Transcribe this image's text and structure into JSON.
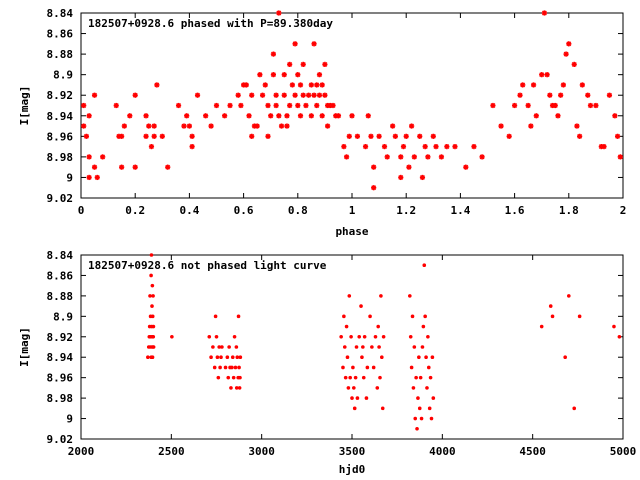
{
  "colors": {
    "points": "#ff0000",
    "frame": "#000000",
    "background": "#ffffff"
  },
  "chart_data": [
    {
      "type": "scatter",
      "title": "182507+0928.6 phased with P=89.380day",
      "xlabel": "phase",
      "ylabel": "I[mag]",
      "xlim": [
        0,
        2
      ],
      "ylim": [
        9.02,
        8.84
      ],
      "y_inverted": true,
      "grid": false,
      "x_ticks": [
        0,
        0.2,
        0.4,
        0.6,
        0.8,
        1,
        1.2,
        1.4,
        1.6,
        1.8,
        2
      ],
      "x_tick_labels": [
        "0",
        "0.2",
        "0.4",
        "0.6",
        "0.8",
        "1",
        "1.2",
        "1.4",
        "1.6",
        "1.8",
        "2"
      ],
      "y_ticks": [
        8.84,
        8.86,
        8.88,
        8.9,
        8.92,
        8.94,
        8.96,
        8.98,
        9.0,
        9.02
      ],
      "y_tick_labels": [
        "8.84",
        "8.86",
        "8.88",
        "8.9",
        "8.92",
        "8.94",
        "8.96",
        "8.98",
        "9",
        "9.02"
      ],
      "marker": "star",
      "points": [
        [
          0.01,
          8.93
        ],
        [
          0.01,
          8.95
        ],
        [
          0.02,
          8.96
        ],
        [
          0.03,
          8.94
        ],
        [
          0.03,
          8.98
        ],
        [
          0.03,
          9.0
        ],
        [
          0.05,
          8.92
        ],
        [
          0.05,
          8.99
        ],
        [
          0.06,
          9.0
        ],
        [
          0.08,
          8.98
        ],
        [
          0.13,
          8.93
        ],
        [
          0.14,
          8.96
        ],
        [
          0.15,
          8.96
        ],
        [
          0.15,
          8.99
        ],
        [
          0.16,
          8.95
        ],
        [
          0.18,
          8.94
        ],
        [
          0.2,
          8.99
        ],
        [
          0.2,
          8.92
        ],
        [
          0.24,
          8.96
        ],
        [
          0.24,
          8.94
        ],
        [
          0.25,
          8.95
        ],
        [
          0.26,
          8.97
        ],
        [
          0.27,
          8.95
        ],
        [
          0.27,
          8.96
        ],
        [
          0.28,
          8.91
        ],
        [
          0.3,
          8.96
        ],
        [
          0.32,
          8.99
        ],
        [
          0.36,
          8.93
        ],
        [
          0.38,
          8.95
        ],
        [
          0.39,
          8.94
        ],
        [
          0.4,
          8.95
        ],
        [
          0.41,
          8.96
        ],
        [
          0.41,
          8.97
        ],
        [
          0.43,
          8.92
        ],
        [
          0.46,
          8.94
        ],
        [
          0.48,
          8.95
        ],
        [
          0.5,
          8.93
        ],
        [
          0.53,
          8.94
        ],
        [
          0.55,
          8.93
        ],
        [
          0.58,
          8.92
        ],
        [
          0.59,
          8.93
        ],
        [
          0.6,
          8.91
        ],
        [
          0.61,
          8.91
        ],
        [
          0.62,
          8.94
        ],
        [
          0.63,
          8.96
        ],
        [
          0.63,
          8.92
        ],
        [
          0.64,
          8.95
        ],
        [
          0.65,
          8.95
        ],
        [
          0.66,
          8.9
        ],
        [
          0.67,
          8.92
        ],
        [
          0.68,
          8.91
        ],
        [
          0.69,
          8.93
        ],
        [
          0.69,
          8.96
        ],
        [
          0.7,
          8.94
        ],
        [
          0.71,
          8.9
        ],
        [
          0.71,
          8.88
        ],
        [
          0.72,
          8.93
        ],
        [
          0.72,
          8.92
        ],
        [
          0.73,
          8.84
        ],
        [
          0.73,
          8.94
        ],
        [
          0.74,
          8.95
        ],
        [
          0.75,
          8.92
        ],
        [
          0.75,
          8.9
        ],
        [
          0.76,
          8.95
        ],
        [
          0.76,
          8.94
        ],
        [
          0.77,
          8.93
        ],
        [
          0.77,
          8.89
        ],
        [
          0.78,
          8.91
        ],
        [
          0.79,
          8.87
        ],
        [
          0.79,
          8.92
        ],
        [
          0.8,
          8.93
        ],
        [
          0.8,
          8.9
        ],
        [
          0.81,
          8.91
        ],
        [
          0.81,
          8.94
        ],
        [
          0.82,
          8.92
        ],
        [
          0.82,
          8.89
        ],
        [
          0.83,
          8.93
        ],
        [
          0.84,
          8.92
        ],
        [
          0.85,
          8.91
        ],
        [
          0.85,
          8.94
        ],
        [
          0.86,
          8.92
        ],
        [
          0.86,
          8.87
        ],
        [
          0.87,
          8.91
        ],
        [
          0.87,
          8.93
        ],
        [
          0.88,
          8.9
        ],
        [
          0.88,
          8.92
        ],
        [
          0.89,
          8.94
        ],
        [
          0.89,
          8.91
        ],
        [
          0.9,
          8.89
        ],
        [
          0.9,
          8.92
        ],
        [
          0.91,
          8.93
        ],
        [
          0.91,
          8.95
        ],
        [
          0.92,
          8.93
        ],
        [
          0.93,
          8.93
        ],
        [
          0.94,
          8.94
        ],
        [
          0.95,
          8.94
        ],
        [
          0.97,
          8.97
        ],
        [
          0.98,
          8.98
        ],
        [
          0.99,
          8.96
        ],
        [
          1.0,
          8.94
        ],
        [
          1.02,
          8.96
        ],
        [
          1.05,
          8.97
        ],
        [
          1.06,
          8.94
        ],
        [
          1.07,
          8.96
        ],
        [
          1.08,
          9.01
        ],
        [
          1.08,
          8.99
        ],
        [
          1.1,
          8.96
        ],
        [
          1.12,
          8.97
        ],
        [
          1.13,
          8.98
        ],
        [
          1.15,
          8.95
        ],
        [
          1.16,
          8.96
        ],
        [
          1.18,
          8.98
        ],
        [
          1.18,
          9.0
        ],
        [
          1.19,
          8.97
        ],
        [
          1.2,
          8.96
        ],
        [
          1.21,
          8.99
        ],
        [
          1.22,
          8.95
        ],
        [
          1.23,
          8.98
        ],
        [
          1.25,
          8.96
        ],
        [
          1.26,
          9.0
        ],
        [
          1.27,
          8.97
        ],
        [
          1.28,
          8.98
        ],
        [
          1.3,
          8.96
        ],
        [
          1.31,
          8.97
        ],
        [
          1.33,
          8.98
        ],
        [
          1.35,
          8.97
        ],
        [
          1.38,
          8.97
        ],
        [
          1.42,
          8.99
        ],
        [
          1.45,
          8.97
        ],
        [
          1.48,
          8.98
        ],
        [
          1.52,
          8.93
        ],
        [
          1.55,
          8.95
        ],
        [
          1.58,
          8.96
        ],
        [
          1.6,
          8.93
        ],
        [
          1.62,
          8.92
        ],
        [
          1.63,
          8.91
        ],
        [
          1.65,
          8.93
        ],
        [
          1.66,
          8.95
        ],
        [
          1.67,
          8.91
        ],
        [
          1.68,
          8.94
        ],
        [
          1.7,
          8.9
        ],
        [
          1.71,
          8.84
        ],
        [
          1.72,
          8.9
        ],
        [
          1.73,
          8.92
        ],
        [
          1.74,
          8.93
        ],
        [
          1.75,
          8.93
        ],
        [
          1.76,
          8.94
        ],
        [
          1.77,
          8.92
        ],
        [
          1.78,
          8.91
        ],
        [
          1.79,
          8.88
        ],
        [
          1.8,
          8.87
        ],
        [
          1.82,
          8.89
        ],
        [
          1.83,
          8.95
        ],
        [
          1.84,
          8.96
        ],
        [
          1.85,
          8.91
        ],
        [
          1.87,
          8.92
        ],
        [
          1.88,
          8.93
        ],
        [
          1.9,
          8.93
        ],
        [
          1.92,
          8.97
        ],
        [
          1.93,
          8.97
        ],
        [
          1.95,
          8.92
        ],
        [
          1.97,
          8.94
        ],
        [
          1.98,
          8.96
        ],
        [
          1.99,
          8.98
        ]
      ]
    },
    {
      "type": "scatter",
      "title": "182507+0928.6 not phased light curve",
      "xlabel": "hjd0",
      "ylabel": "I[mag]",
      "xlim": [
        2000,
        5000
      ],
      "ylim": [
        9.02,
        8.84
      ],
      "y_inverted": true,
      "grid": false,
      "x_ticks": [
        2000,
        2500,
        3000,
        3500,
        4000,
        4500,
        5000
      ],
      "x_tick_labels": [
        "2000",
        "2500",
        "3000",
        "3500",
        "4000",
        "4500",
        "5000"
      ],
      "y_ticks": [
        8.84,
        8.86,
        8.88,
        8.9,
        8.92,
        8.94,
        8.96,
        8.98,
        9.0,
        9.02
      ],
      "y_tick_labels": [
        "8.84",
        "8.86",
        "8.88",
        "8.9",
        "8.92",
        "8.94",
        "8.96",
        "8.98",
        "9",
        "9.02"
      ],
      "marker": "dot",
      "points": [
        [
          2370,
          8.94
        ],
        [
          2375,
          8.93
        ],
        [
          2378,
          8.92
        ],
        [
          2380,
          8.91
        ],
        [
          2382,
          8.88
        ],
        [
          2383,
          8.93
        ],
        [
          2385,
          8.9
        ],
        [
          2386,
          8.92
        ],
        [
          2388,
          8.86
        ],
        [
          2389,
          8.94
        ],
        [
          2390,
          8.84
        ],
        [
          2391,
          8.91
        ],
        [
          2392,
          8.93
        ],
        [
          2393,
          8.89
        ],
        [
          2394,
          8.92
        ],
        [
          2395,
          8.87
        ],
        [
          2396,
          8.94
        ],
        [
          2397,
          8.9
        ],
        [
          2398,
          8.93
        ],
        [
          2399,
          8.88
        ],
        [
          2400,
          8.92
        ],
        [
          2401,
          8.91
        ],
        [
          2402,
          8.93
        ],
        [
          2503,
          8.92
        ],
        [
          2710,
          8.92
        ],
        [
          2720,
          8.94
        ],
        [
          2730,
          8.93
        ],
        [
          2740,
          8.95
        ],
        [
          2745,
          8.9
        ],
        [
          2750,
          8.92
        ],
        [
          2755,
          8.94
        ],
        [
          2760,
          8.96
        ],
        [
          2765,
          8.93
        ],
        [
          2770,
          8.95
        ],
        [
          2775,
          8.94
        ],
        [
          2780,
          8.93
        ],
        [
          2800,
          8.95
        ],
        [
          2810,
          8.94
        ],
        [
          2815,
          8.96
        ],
        [
          2820,
          8.93
        ],
        [
          2825,
          8.95
        ],
        [
          2830,
          8.97
        ],
        [
          2835,
          8.95
        ],
        [
          2840,
          8.94
        ],
        [
          2845,
          8.96
        ],
        [
          2850,
          8.92
        ],
        [
          2855,
          8.95
        ],
        [
          2860,
          8.93
        ],
        [
          2862,
          8.97
        ],
        [
          2865,
          8.94
        ],
        [
          2870,
          8.96
        ],
        [
          2872,
          8.9
        ],
        [
          2875,
          8.95
        ],
        [
          2878,
          8.97
        ],
        [
          2880,
          8.96
        ],
        [
          2882,
          8.94
        ],
        [
          3440,
          8.92
        ],
        [
          3450,
          8.95
        ],
        [
          3455,
          8.9
        ],
        [
          3460,
          8.93
        ],
        [
          3465,
          8.96
        ],
        [
          3470,
          8.91
        ],
        [
          3475,
          8.94
        ],
        [
          3480,
          8.97
        ],
        [
          3485,
          8.88
        ],
        [
          3490,
          8.96
        ],
        [
          3495,
          8.92
        ],
        [
          3500,
          8.98
        ],
        [
          3505,
          8.95
        ],
        [
          3510,
          8.97
        ],
        [
          3515,
          8.99
        ],
        [
          3520,
          8.96
        ],
        [
          3525,
          8.93
        ],
        [
          3530,
          8.98
        ],
        [
          3540,
          8.92
        ],
        [
          3550,
          8.89
        ],
        [
          3555,
          8.94
        ],
        [
          3560,
          8.93
        ],
        [
          3565,
          8.96
        ],
        [
          3570,
          8.92
        ],
        [
          3580,
          8.98
        ],
        [
          3585,
          8.95
        ],
        [
          3600,
          8.9
        ],
        [
          3610,
          8.93
        ],
        [
          3620,
          8.95
        ],
        [
          3630,
          8.92
        ],
        [
          3640,
          8.97
        ],
        [
          3645,
          8.91
        ],
        [
          3650,
          8.93
        ],
        [
          3655,
          8.96
        ],
        [
          3660,
          8.88
        ],
        [
          3665,
          8.94
        ],
        [
          3670,
          8.99
        ],
        [
          3675,
          8.92
        ],
        [
          3820,
          8.88
        ],
        [
          3825,
          8.92
        ],
        [
          3830,
          8.95
        ],
        [
          3835,
          8.9
        ],
        [
          3840,
          8.97
        ],
        [
          3845,
          8.93
        ],
        [
          3850,
          9.0
        ],
        [
          3855,
          8.96
        ],
        [
          3860,
          9.01
        ],
        [
          3865,
          8.98
        ],
        [
          3870,
          8.94
        ],
        [
          3875,
          8.99
        ],
        [
          3880,
          8.96
        ],
        [
          3885,
          9.0
        ],
        [
          3890,
          8.93
        ],
        [
          3895,
          8.91
        ],
        [
          3900,
          8.85
        ],
        [
          3905,
          8.9
        ],
        [
          3910,
          8.94
        ],
        [
          3915,
          8.97
        ],
        [
          3920,
          8.92
        ],
        [
          3925,
          8.95
        ],
        [
          3930,
          8.99
        ],
        [
          3935,
          8.96
        ],
        [
          3940,
          9.0
        ],
        [
          3945,
          8.94
        ],
        [
          3950,
          8.98
        ],
        [
          4550,
          8.91
        ],
        [
          4600,
          8.89
        ],
        [
          4610,
          8.9
        ],
        [
          4680,
          8.94
        ],
        [
          4700,
          8.88
        ],
        [
          4730,
          8.99
        ],
        [
          4760,
          8.9
        ],
        [
          4950,
          8.91
        ],
        [
          4980,
          8.92
        ]
      ]
    }
  ]
}
